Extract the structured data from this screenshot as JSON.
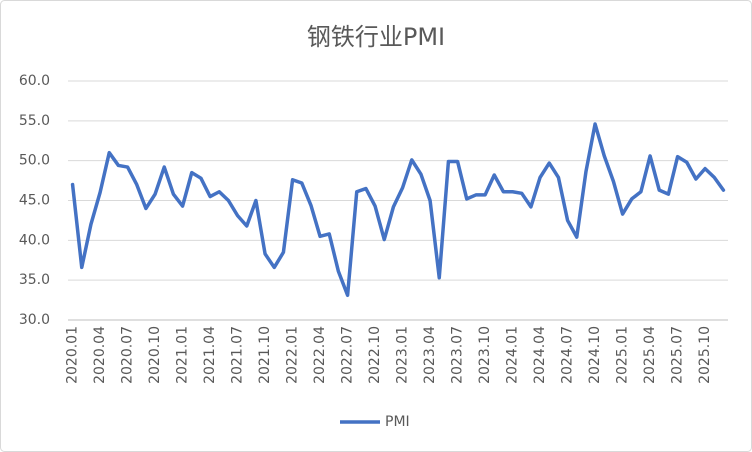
{
  "chart_data": {
    "type": "line",
    "title": "钢铁行业PMI",
    "categories": [
      "2020.01",
      null,
      null,
      "2020.04",
      null,
      null,
      "2020.07",
      null,
      null,
      "2020.10",
      null,
      null,
      "2021.01",
      null,
      null,
      "2021.04",
      null,
      null,
      "2021.07",
      null,
      null,
      "2021.10",
      null,
      null,
      "2022.01",
      null,
      null,
      "2022.04",
      null,
      null,
      "2022.07",
      null,
      null,
      "2022.10",
      null,
      null,
      "2023.01",
      null,
      null,
      "2023.04",
      null,
      null,
      "2023.07",
      null,
      null,
      "2023.10",
      null,
      null,
      "2024.01",
      null,
      null,
      "2024.04",
      null,
      null,
      "2024.07",
      null,
      null,
      "2024.10",
      null,
      null,
      "2025.01",
      null,
      null,
      "2025.04",
      null,
      null,
      "2025.07",
      null,
      null,
      "2025.10",
      null,
      null
    ],
    "series": [
      {
        "name": "PMI",
        "color": "#4472c4",
        "values": [
          47.0,
          36.6,
          42.0,
          46.0,
          51.0,
          49.4,
          49.2,
          47.0,
          44.0,
          45.8,
          49.2,
          45.8,
          44.3,
          48.5,
          47.8,
          45.5,
          46.1,
          45.0,
          43.1,
          41.8,
          45.0,
          38.3,
          36.6,
          38.5,
          47.6,
          47.2,
          44.4,
          40.5,
          40.8,
          36.1,
          33.1,
          46.1,
          46.5,
          44.3,
          40.1,
          44.2,
          46.6,
          50.1,
          48.3,
          45.0,
          35.3,
          49.9,
          49.9,
          45.2,
          45.7,
          45.7,
          48.2,
          46.1,
          46.1,
          45.9,
          44.2,
          47.9,
          49.7,
          47.9,
          42.5,
          40.4,
          48.6,
          54.6,
          50.6,
          47.4,
          43.3,
          45.2,
          46.1,
          50.6,
          46.3,
          45.8,
          50.5,
          49.8,
          47.7,
          49.0,
          47.9,
          46.3
        ]
      }
    ],
    "ylim": [
      30,
      60
    ],
    "yticks": [
      {
        "value": 30,
        "label": "30.0"
      },
      {
        "value": 35,
        "label": "35.0"
      },
      {
        "value": 40,
        "label": "40.0"
      },
      {
        "value": 45,
        "label": "45.0"
      },
      {
        "value": 50,
        "label": "50.0"
      },
      {
        "value": 55,
        "label": "55.0"
      },
      {
        "value": 60,
        "label": "60.0"
      }
    ],
    "grid": true,
    "legend": "bottom"
  }
}
